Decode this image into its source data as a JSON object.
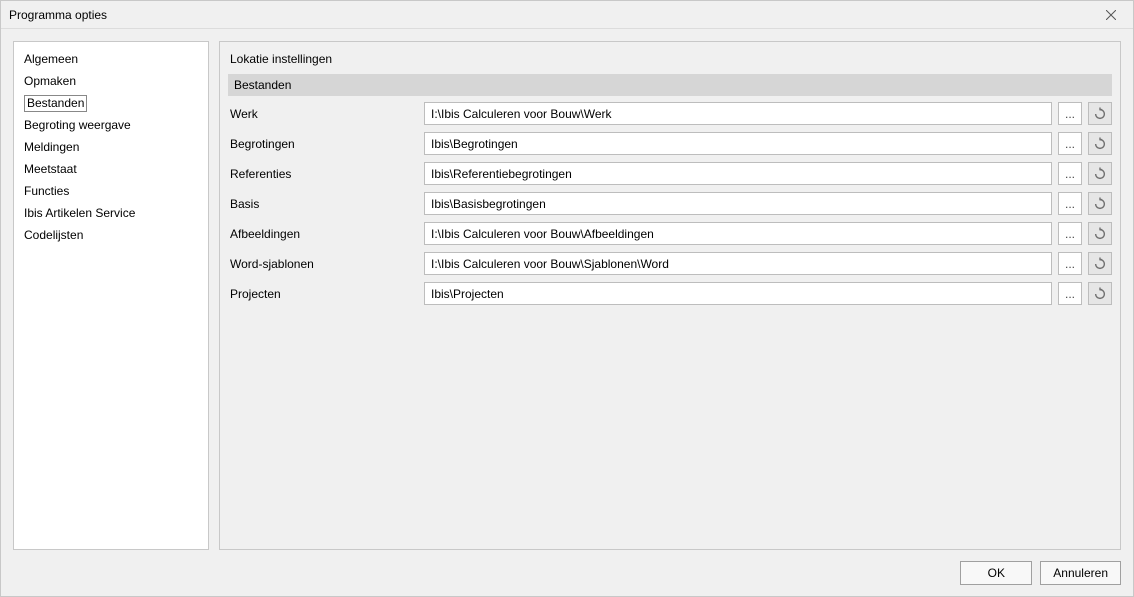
{
  "window": {
    "title": "Programma opties"
  },
  "sidebar": {
    "items": [
      {
        "label": "Algemeen",
        "selected": false
      },
      {
        "label": "Opmaken",
        "selected": false
      },
      {
        "label": "Bestanden",
        "selected": true
      },
      {
        "label": "Begroting weergave",
        "selected": false
      },
      {
        "label": "Meldingen",
        "selected": false
      },
      {
        "label": "Meetstaat",
        "selected": false
      },
      {
        "label": "Functies",
        "selected": false
      },
      {
        "label": "Ibis Artikelen Service",
        "selected": false
      },
      {
        "label": "Codelijsten",
        "selected": false
      }
    ]
  },
  "main": {
    "section_title": "Lokatie instellingen",
    "group_header": "Bestanden",
    "rows": [
      {
        "label": "Werk",
        "value": "I:\\Ibis Calculeren voor Bouw\\Werk"
      },
      {
        "label": "Begrotingen",
        "value": "Ibis\\Begrotingen"
      },
      {
        "label": "Referenties",
        "value": "Ibis\\Referentiebegrotingen"
      },
      {
        "label": "Basis",
        "value": "Ibis\\Basisbegrotingen"
      },
      {
        "label": "Afbeeldingen",
        "value": "I:\\Ibis Calculeren voor Bouw\\Afbeeldingen"
      },
      {
        "label": "Word-sjablonen",
        "value": "I:\\Ibis Calculeren voor Bouw\\Sjablonen\\Word"
      },
      {
        "label": "Projecten",
        "value": "Ibis\\Projecten"
      }
    ],
    "browse_label": "...",
    "reset_icon": "undo-icon"
  },
  "footer": {
    "ok_label": "OK",
    "cancel_label": "Annuleren"
  }
}
